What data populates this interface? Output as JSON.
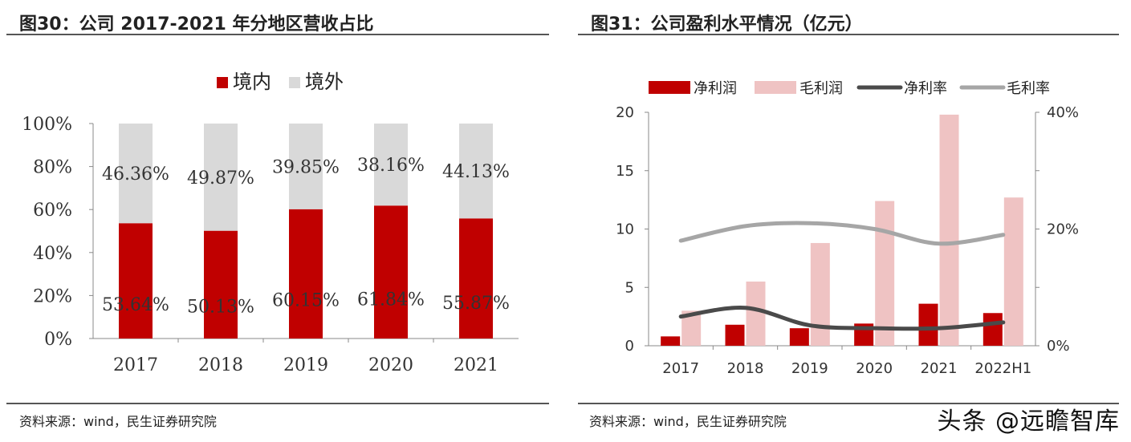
{
  "left": {
    "title": "图30：公司 2017-2021 年分地区营收占比",
    "source": "资料来源：wind，民生证券研究院"
  },
  "right": {
    "title": "图31：公司盈利水平情况（亿元）",
    "source": "资料来源：wind，民生证券研究院"
  },
  "watermark": "头条 @远瞻智库",
  "colors": {
    "domestic": "#c00000",
    "overseas": "#d9d9d9",
    "net_profit": "#c00000",
    "gross_profit": "#efc3c3",
    "net_margin": "#4a4a4a",
    "gross_margin": "#a6a6a6"
  },
  "chart_data": [
    {
      "type": "bar",
      "stacked": true,
      "categories": [
        "2017",
        "2018",
        "2019",
        "2020",
        "2021"
      ],
      "series": [
        {
          "name": "境内",
          "values": [
            53.64,
            50.13,
            60.15,
            61.84,
            55.87
          ],
          "labels": [
            "53.64%",
            "50.13%",
            "60.15%",
            "61.84%",
            "55.87%"
          ]
        },
        {
          "name": "境外",
          "values": [
            46.36,
            49.87,
            39.85,
            38.16,
            44.13
          ],
          "labels": [
            "46.36%",
            "49.87%",
            "39.85%",
            "38.16%",
            "44.13%"
          ]
        }
      ],
      "ylim": [
        0,
        100
      ],
      "yticks": [
        "0%",
        "20%",
        "40%",
        "60%",
        "80%",
        "100%"
      ],
      "legend": "top"
    },
    {
      "type": "bar",
      "categories": [
        "2017",
        "2018",
        "2019",
        "2020",
        "2021",
        "2022H1"
      ],
      "series": [
        {
          "name": "净利润",
          "kind": "bar",
          "axis": "left",
          "values": [
            0.8,
            1.8,
            1.5,
            1.9,
            3.6,
            2.8
          ]
        },
        {
          "name": "毛利润",
          "kind": "bar",
          "axis": "left",
          "values": [
            3.0,
            5.5,
            8.8,
            12.4,
            19.8,
            12.7
          ]
        },
        {
          "name": "净利率",
          "kind": "line",
          "axis": "right",
          "values": [
            5,
            6.5,
            3.5,
            3,
            3,
            4
          ]
        },
        {
          "name": "毛利率",
          "kind": "line",
          "axis": "right",
          "values": [
            18,
            20.5,
            21,
            20,
            17.5,
            19
          ]
        }
      ],
      "ylim": [
        0,
        20
      ],
      "yticks": [
        "0",
        "5",
        "10",
        "15",
        "20"
      ],
      "y2lim": [
        0,
        40
      ],
      "y2ticks": [
        "0%",
        "20%",
        "40%"
      ],
      "legend": "top"
    }
  ]
}
